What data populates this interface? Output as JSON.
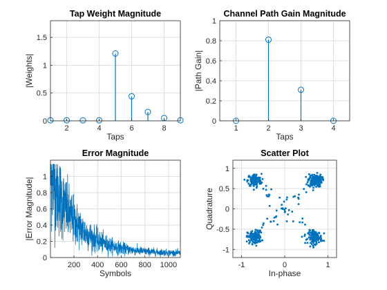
{
  "chart_data": [
    {
      "type": "stem",
      "title": "Tap Weight Magnitude",
      "xlabel": "Taps",
      "ylabel": "|Weights|",
      "xlim": [
        1,
        9
      ],
      "ylim": [
        0,
        1.8
      ],
      "xticks": [
        2,
        4,
        6,
        8
      ],
      "yticks": [
        0,
        0.5,
        1,
        1.5
      ],
      "ytick_labels": [
        "0",
        "0.5",
        "1",
        "1.5"
      ],
      "grid": true,
      "color": "#0072BD",
      "x": [
        1,
        2,
        3,
        4,
        5,
        6,
        7,
        8,
        9
      ],
      "y": [
        0.01,
        0.01,
        0.01,
        0.01,
        1.21,
        0.44,
        0.16,
        0.05,
        0.01
      ]
    },
    {
      "type": "stem",
      "title": "Channel Path Gain Magnitude",
      "xlabel": "Taps",
      "ylabel": "|Path Gain|",
      "xlim": [
        0.5,
        4.5
      ],
      "ylim": [
        0,
        1
      ],
      "xticks": [
        1,
        2,
        3,
        4
      ],
      "yticks": [
        0,
        0.2,
        0.4,
        0.6,
        0.8,
        1
      ],
      "ytick_labels": [
        "0",
        "0.2",
        "0.4",
        "0.6",
        "0.8",
        "1"
      ],
      "grid": true,
      "color": "#0072BD",
      "x": [
        1,
        2,
        3,
        4
      ],
      "y": [
        0,
        0.81,
        0.31,
        0
      ]
    },
    {
      "type": "line",
      "title": "Error Magnitude",
      "xlabel": "Symbols",
      "ylabel": "|Error Magnitude|",
      "xlim": [
        1,
        1100
      ],
      "ylim": [
        0,
        1.2
      ],
      "xticks": [
        200,
        400,
        600,
        800,
        1000
      ],
      "yticks": [
        0,
        0.2,
        0.4,
        0.6,
        0.8,
        1
      ],
      "ytick_labels": [
        "0",
        "0.2",
        "0.4",
        "0.6",
        "0.8",
        "1"
      ],
      "grid": true,
      "color": "#0072BD",
      "n_points": 1100,
      "start_value": 1.05,
      "floor_value": 0.05,
      "decay_symbols": 220
    },
    {
      "type": "scatter",
      "title": "Scatter Plot",
      "xlabel": "In-phase",
      "ylabel": "Quadrature",
      "xlim": [
        -1.2,
        1.2
      ],
      "ylim": [
        -1.2,
        1.2
      ],
      "xticks": [
        -1,
        0,
        1
      ],
      "xtick_labels": [
        "-1",
        "0",
        "1"
      ],
      "yticks": [
        -1,
        -0.5,
        0,
        0.5,
        1
      ],
      "ytick_labels": [
        "-1",
        "-0.5",
        "0",
        "0.5",
        "1"
      ],
      "grid": true,
      "color": "#0072BD",
      "clusters": [
        [
          -0.7,
          0.7
        ],
        [
          0.7,
          0.7
        ],
        [
          -0.7,
          -0.7
        ],
        [
          0.7,
          -0.7
        ]
      ],
      "points_per_cluster": 140,
      "transient_points": 60
    }
  ]
}
